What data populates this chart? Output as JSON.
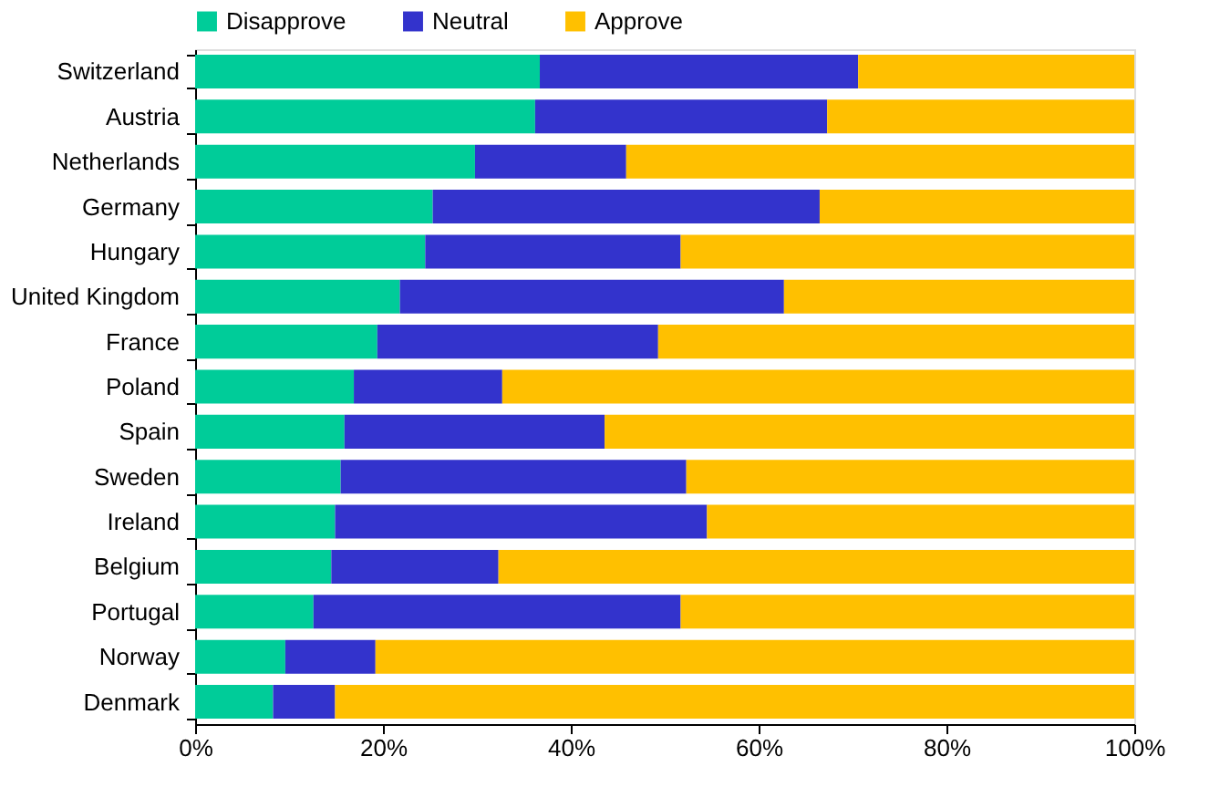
{
  "chart_data": {
    "type": "bar",
    "orientation": "horizontal",
    "stacked": true,
    "categories": [
      "Switzerland",
      "Austria",
      "Netherlands",
      "Germany",
      "Hungary",
      "United Kingdom",
      "France",
      "Poland",
      "Spain",
      "Sweden",
      "Ireland",
      "Belgium",
      "Portugal",
      "Norway",
      "Denmark"
    ],
    "series": [
      {
        "name": "Disapprove",
        "color": "#00cc99",
        "values": [
          36.7,
          36.2,
          29.8,
          25.3,
          24.5,
          21.8,
          19.4,
          16.9,
          15.9,
          15.5,
          14.9,
          14.5,
          12.6,
          9.6,
          8.3
        ]
      },
      {
        "name": "Neutral",
        "color": "#3333cc",
        "values": [
          33.9,
          31.1,
          16.1,
          41.2,
          27.2,
          40.9,
          29.9,
          15.8,
          27.7,
          36.8,
          39.6,
          17.8,
          39.1,
          9.6,
          6.6
        ]
      },
      {
        "name": "Approve",
        "color": "#ffc000",
        "values": [
          29.4,
          32.7,
          54.1,
          33.5,
          48.3,
          37.3,
          50.7,
          67.3,
          56.4,
          47.7,
          45.5,
          67.7,
          48.3,
          80.8,
          85.1
        ]
      }
    ],
    "xlim": [
      0,
      100
    ],
    "xticks": [
      {
        "value": 0,
        "label": "0%"
      },
      {
        "value": 20,
        "label": "20%"
      },
      {
        "value": 40,
        "label": "40%"
      },
      {
        "value": 60,
        "label": "60%"
      },
      {
        "value": 80,
        "label": "80%"
      },
      {
        "value": 100,
        "label": "100%"
      }
    ],
    "grid": false,
    "legend": "top"
  }
}
